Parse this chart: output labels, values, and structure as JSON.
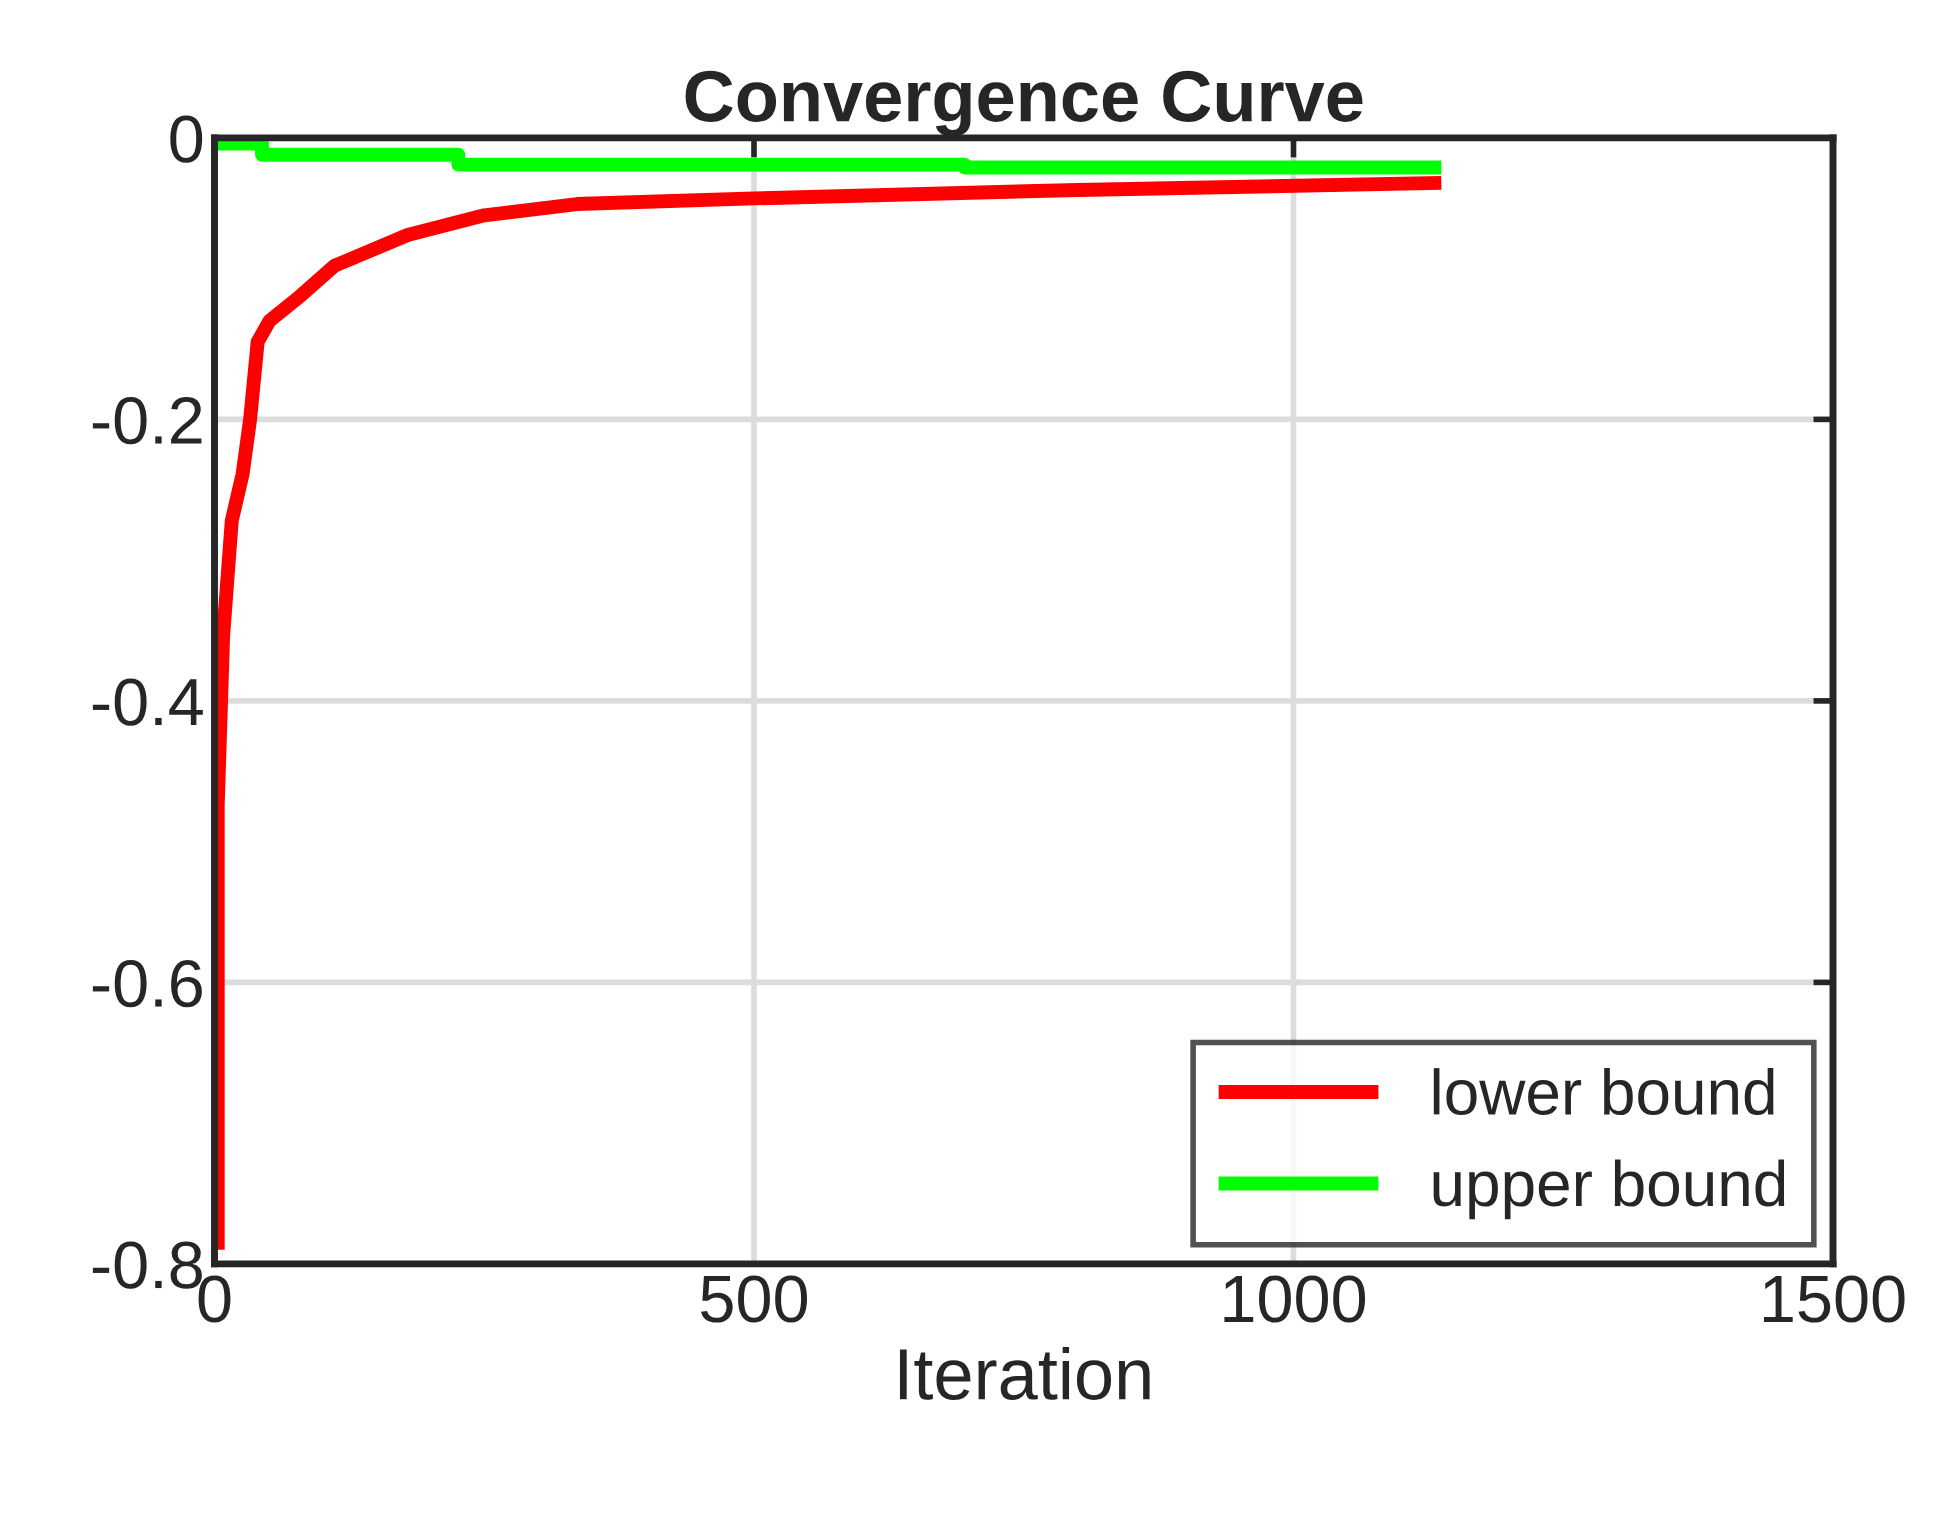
{
  "chart_data": {
    "type": "line",
    "title": "Convergence Curve",
    "xlabel": "Iteration",
    "xlim": [
      0,
      1500
    ],
    "xticks": [
      0,
      500,
      1000,
      1500
    ],
    "ylim": [
      -0.8,
      0
    ],
    "yticks": [
      -0.8,
      -0.6,
      -0.4,
      -0.2,
      0
    ],
    "grid": true,
    "legend": "bottom right",
    "series": [
      {
        "name": "lower bound",
        "color": "#ff0000",
        "x": [
          3,
          3,
          8,
          16,
          26,
          33,
          40,
          51,
          80,
          111,
          179,
          250,
          336,
          500,
          800,
          1137
        ],
        "values": [
          -0.79,
          -0.474,
          -0.354,
          -0.272,
          -0.239,
          -0.2,
          -0.145,
          -0.13,
          -0.112,
          -0.091,
          -0.069,
          -0.055,
          -0.047,
          -0.043,
          -0.037,
          -0.032
        ]
      },
      {
        "name": "upper bound",
        "color": "#00ff00",
        "type": "step",
        "x": [
          3,
          44,
          226,
          695,
          1137
        ],
        "values": [
          -0.004,
          -0.012,
          -0.019,
          -0.021,
          -0.021
        ]
      }
    ]
  }
}
